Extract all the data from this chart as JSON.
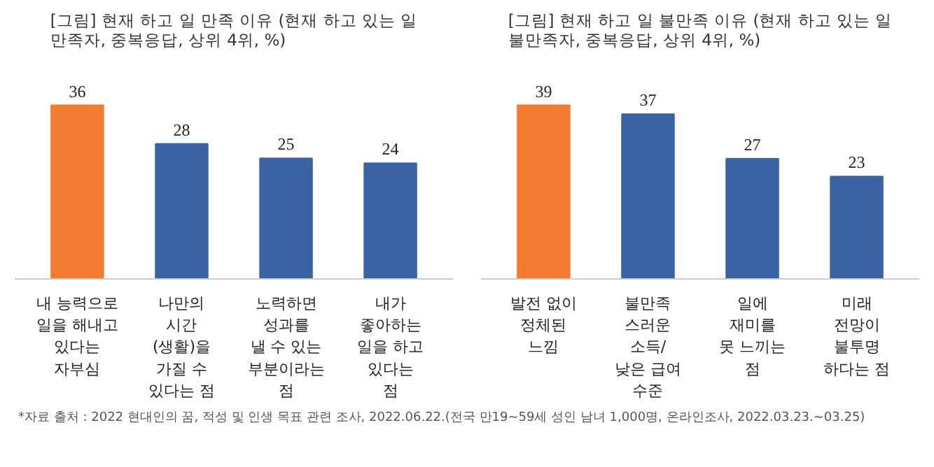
{
  "chart_data": [
    {
      "type": "bar",
      "title": "[그림] 현재 하고 일 만족 이유 (현재 하고 있는 일\n만족자, 중복응답, 상위 4위, %)",
      "categories": [
        "내 능력으로\n일을 해내고\n있다는\n자부심",
        "나만의\n시간\n(생활)을\n가질 수\n있다는 점",
        "노력하면\n성과를\n낼 수 있는\n부분이라는\n점",
        "내가\n좋아하는\n일을 하고\n있다는\n점"
      ],
      "values": [
        36,
        28,
        25,
        24
      ],
      "colors": [
        "#f47c30",
        "#3a64a4",
        "#3a64a4",
        "#3a64a4"
      ],
      "data_labels": true,
      "grid": false,
      "tick_labels": "x",
      "annotations": [
        "*자료 출처 : 2022 현대인의 꿈, 적성 및 인생 목표 관련 조사, 2022.06.22.(전국 만19~59세 성인 남녀 1,000명, 온라인조사, 2022.03.23.~03.25)"
      ]
    },
    {
      "type": "bar",
      "title": "[그림] 현재 하고 일 불만족 이유 (현재 하고 있는 일\n불만족자, 중복응답, 상위 4위, %)",
      "categories": [
        "발전 없이\n정체된\n느낌",
        "불만족\n스러운\n소득/\n낮은 급여\n수준",
        "일에\n재미를\n못 느끼는\n점",
        "미래\n전망이\n불투명\n하다는 점"
      ],
      "values": [
        39,
        37,
        27,
        23
      ],
      "colors": [
        "#f47c30",
        "#3a64a4",
        "#3a64a4",
        "#3a64a4"
      ],
      "data_labels": true,
      "grid": false,
      "tick_labels": "x"
    }
  ]
}
